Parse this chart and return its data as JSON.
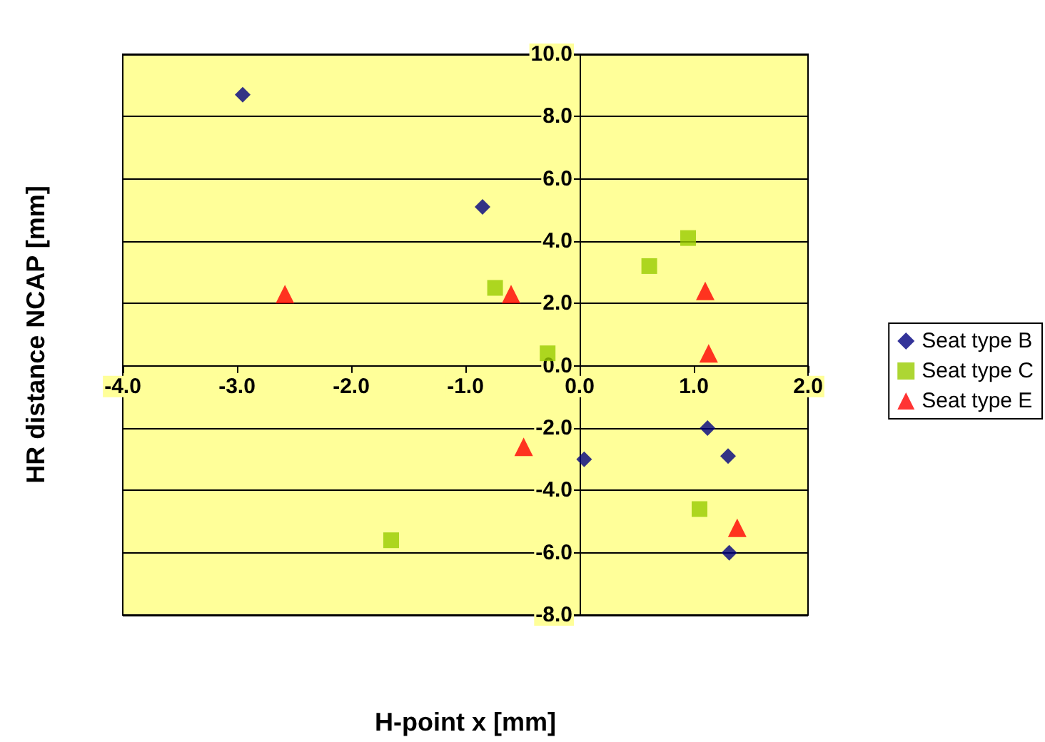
{
  "chart_data": {
    "type": "scatter",
    "xlabel": "H-point x [mm]",
    "ylabel": "HR distance NCAP [mm]",
    "xlim": [
      -4,
      2
    ],
    "xticks": [
      {
        "value": -4,
        "label": "-4.0"
      },
      {
        "value": -3,
        "label": "-3.0"
      },
      {
        "value": -2,
        "label": "-2.0"
      },
      {
        "value": -1,
        "label": "-1.0"
      },
      {
        "value": 0,
        "label": "0.0"
      },
      {
        "value": 1,
        "label": "1.0"
      },
      {
        "value": 2,
        "label": "2.0"
      }
    ],
    "ylim": [
      -8,
      10
    ],
    "yticks": [
      {
        "value": -8,
        "label": "-8.0"
      },
      {
        "value": -6,
        "label": "-6.0"
      },
      {
        "value": -4,
        "label": "-4.0"
      },
      {
        "value": -2,
        "label": "-2.0"
      },
      {
        "value": 0,
        "label": "0.0"
      },
      {
        "value": 2,
        "label": "2.0"
      },
      {
        "value": 4,
        "label": "4.0"
      },
      {
        "value": 6,
        "label": "6.0"
      },
      {
        "value": 8,
        "label": "8.0"
      },
      {
        "value": 10,
        "label": "10.0"
      }
    ],
    "grid": "y",
    "legend": "right",
    "series": [
      {
        "name": "Seat type B",
        "color": "#000080",
        "marker": "diamond",
        "x": [
          -2.95,
          -0.85,
          0.04,
          1.12,
          1.3,
          1.31
        ],
        "values": [
          8.7,
          5.1,
          -3.0,
          -2.0,
          -2.9,
          -6.0
        ]
      },
      {
        "name": "Seat type C",
        "color": "#99cc00",
        "marker": "square",
        "x": [
          -0.74,
          -0.28,
          -1.65,
          0.61,
          0.95,
          1.05
        ],
        "values": [
          2.5,
          0.4,
          -5.6,
          3.2,
          4.1,
          -4.6
        ]
      },
      {
        "name": "Seat type E",
        "color": "#ff0000",
        "marker": "triangle",
        "x": [
          -2.58,
          -0.6,
          -0.49,
          1.1,
          1.13,
          1.38
        ],
        "values": [
          2.3,
          2.3,
          -2.6,
          2.4,
          0.4,
          -5.2
        ]
      }
    ]
  }
}
